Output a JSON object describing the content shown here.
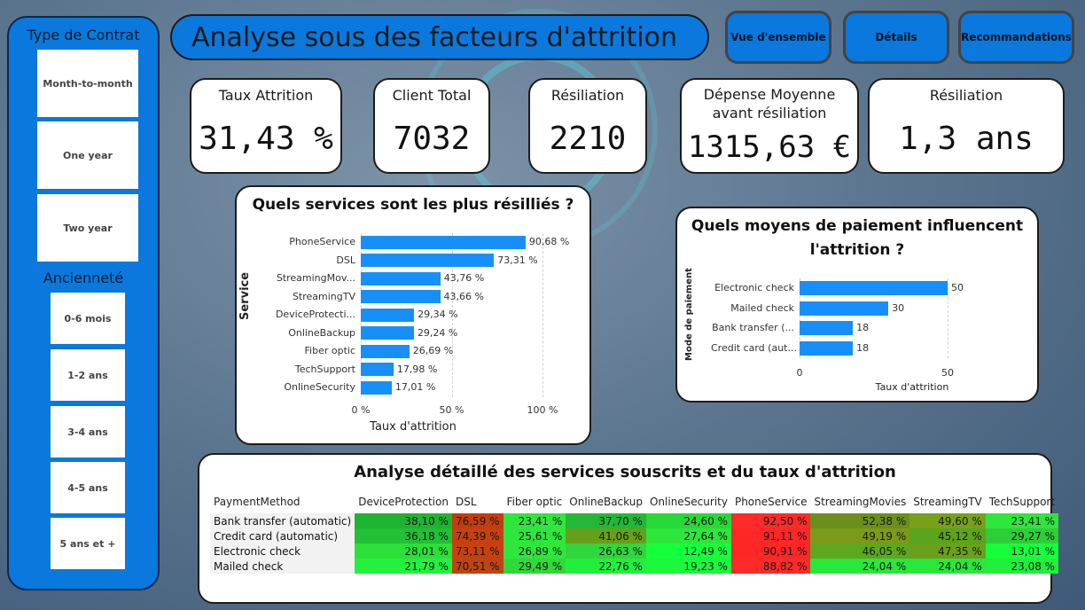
{
  "sidebar": {
    "contract_title": "Type de Contrat",
    "contracts": [
      "Month-to-month",
      "One year",
      "Two year"
    ],
    "seniority_title": "Ancienneté",
    "seniority": [
      "0-6 mois",
      "1-2 ans",
      "3-4 ans",
      "4-5 ans",
      "5 ans et +"
    ]
  },
  "header": {
    "title": "Analyse sous des facteurs d'attrition",
    "nav": [
      "Vue d'ensemble",
      "Détails",
      "Recommandations"
    ]
  },
  "kpis": [
    {
      "label": "Taux Attrition",
      "value": "31,43 %"
    },
    {
      "label": "Client Total",
      "value": "7032"
    },
    {
      "label": "Résiliation",
      "value": "2210"
    },
    {
      "label_line1": "Dépense Moyenne",
      "label_line2": "avant résiliation",
      "value": "1315,63 €"
    },
    {
      "label": "Résiliation",
      "value": "1,3 ans"
    }
  ],
  "chart_data": [
    {
      "type": "bar",
      "orientation": "horizontal",
      "title": "Quels services sont les plus résilliés ?",
      "xlabel": "Taux d'attrition",
      "ylabel": "Service",
      "categories": [
        "PhoneService",
        "DSL",
        "StreamingMov...",
        "StreamingTV",
        "DeviceProtecti...",
        "OnlineBackup",
        "Fiber optic",
        "TechSupport",
        "OnlineSecurity"
      ],
      "values": [
        90.68,
        73.31,
        43.76,
        43.66,
        29.34,
        29.24,
        26.69,
        17.98,
        17.01
      ],
      "value_labels": [
        "90,68 %",
        "73,31 %",
        "43,76 %",
        "43,66 %",
        "29,34 %",
        "29,24 %",
        "26,69 %",
        "17,98 %",
        "17,01 %"
      ],
      "xlim": [
        0,
        100
      ],
      "xticks": [
        "0 %",
        "50 %",
        "100 %"
      ],
      "grid": true,
      "color": "#1690f8"
    },
    {
      "type": "bar",
      "orientation": "horizontal",
      "title_line1": "Quels moyens de paiement influencent",
      "title_line2": "l'attrition ?",
      "xlabel": "Taux d'attrition",
      "ylabel": "Mode de paiement",
      "categories": [
        "Electronic check",
        "Mailed check",
        "Bank transfer (...",
        "Credit card (aut..."
      ],
      "values": [
        50,
        30,
        18,
        18
      ],
      "value_labels": [
        "50",
        "30",
        "18",
        "18"
      ],
      "xlim": [
        0,
        50
      ],
      "xticks": [
        "0",
        "50"
      ],
      "grid": true,
      "color": "#1690f8"
    }
  ],
  "matrix": {
    "title": "Analyse détaillé des services souscrits et du taux d'attrition",
    "row_header": "PaymentMethod",
    "columns": [
      "DeviceProtection",
      "DSL",
      "Fiber optic",
      "OnlineBackup",
      "OnlineSecurity",
      "PhoneService",
      "StreamingMovies",
      "StreamingTV",
      "TechSupport"
    ],
    "rows": [
      {
        "name": "Bank transfer (automatic)",
        "values": [
          "38,10 %",
          "76,59 %",
          "23,41 %",
          "37,70 %",
          "24,60 %",
          "92,50 %",
          "52,38 %",
          "49,60 %",
          "23,41 %"
        ],
        "colors": [
          "#1fb332",
          "#c43c10",
          "#2ee63c",
          "#22b836",
          "#28d838",
          "#ff2a2a",
          "#6b8f1c",
          "#78a01a",
          "#2ee63c"
        ]
      },
      {
        "name": "Credit card (automatic)",
        "values": [
          "36,18 %",
          "74,39 %",
          "25,61 %",
          "41,06 %",
          "27,64 %",
          "91,11 %",
          "49,19 %",
          "45,12 %",
          "29,27 %"
        ],
        "colors": [
          "#22c034",
          "#c84010",
          "#2ee63c",
          "#66a01a",
          "#2ee63c",
          "#ff2626",
          "#7c9a1a",
          "#5aa41e",
          "#2ccf38"
        ]
      },
      {
        "name": "Electronic check",
        "values": [
          "28,01 %",
          "73,11 %",
          "26,89 %",
          "26,63 %",
          "12,49 %",
          "90,91 %",
          "46,05 %",
          "47,35 %",
          "13,01 %"
        ],
        "colors": [
          "#2ce03a",
          "#c84010",
          "#2ee63c",
          "#30d63c",
          "#14ff3c",
          "#ff2626",
          "#5ca81e",
          "#6aa01c",
          "#14ff3c"
        ]
      },
      {
        "name": "Mailed check",
        "values": [
          "21,79 %",
          "70,51 %",
          "29,49 %",
          "22,76 %",
          "19,23 %",
          "88,82 %",
          "24,04 %",
          "24,04 %",
          "23,08 %"
        ],
        "colors": [
          "#22f23e",
          "#c04412",
          "#32d83a",
          "#20f03c",
          "#1cf83c",
          "#ff2a2a",
          "#28e83a",
          "#28e83a",
          "#22ee3c"
        ]
      }
    ]
  }
}
